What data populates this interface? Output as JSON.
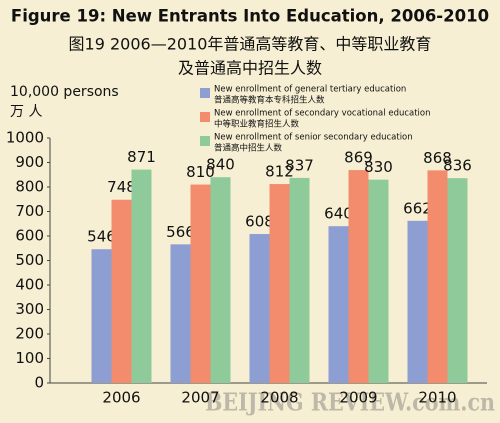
{
  "chart_data": {
    "type": "bar",
    "title": "Figure 19: New Entrants Into Education, 2006-2010",
    "subtitle": [
      "图19  2006—2010年普通高等教育、中等职业教育",
      "及普通高中招生人数"
    ],
    "y_label": [
      "10,000 persons",
      "万 人"
    ],
    "watermark": "BEIJING REVIEW.com.cn",
    "categories": [
      "2006",
      "2007",
      "2008",
      "2009",
      "2010"
    ],
    "series": [
      {
        "name": "New enrollment of general tertiary education",
        "name_cn": "普通高等教育本专科招生人数",
        "color": "#8d9ed2",
        "values": [
          546,
          566,
          608,
          640,
          662
        ]
      },
      {
        "name": "New enrollment of secondary vocational education",
        "name_cn": "中等职业教育招生人数",
        "color": "#f28c6c",
        "values": [
          748,
          810,
          812,
          869,
          868
        ]
      },
      {
        "name": "New enrollment of senior secondary education",
        "name_cn": "普通高中招生人数",
        "color": "#8fca9b",
        "values": [
          871,
          840,
          837,
          830,
          836
        ]
      }
    ],
    "ylim": [
      0,
      1000
    ],
    "yticks": [
      0,
      100,
      200,
      300,
      400,
      500,
      600,
      700,
      800,
      900,
      1000
    ],
    "grid": false,
    "legend": "top-right"
  }
}
